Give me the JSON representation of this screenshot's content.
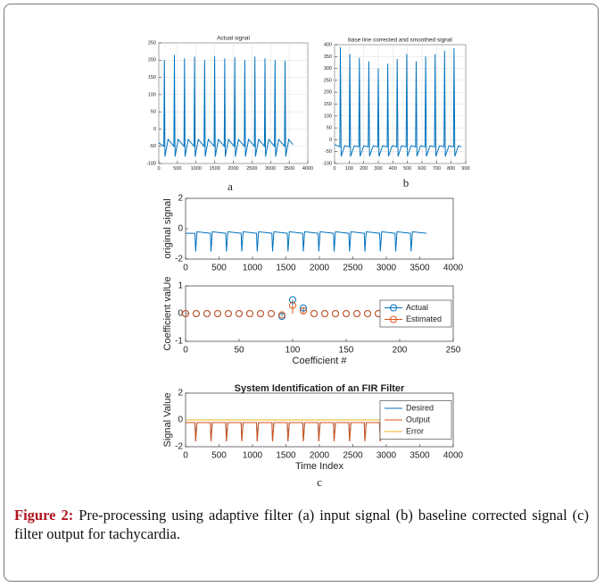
{
  "chart_data": [
    {
      "type": "line",
      "title": "Actual signal",
      "grid": true,
      "xlim": [
        0,
        4000
      ],
      "xticks": [
        0,
        500,
        1000,
        1500,
        2000,
        2500,
        3000,
        3500,
        4000
      ],
      "ylim": [
        -100,
        250
      ],
      "yticks": [
        -100,
        -50,
        0,
        50,
        100,
        150,
        200,
        250
      ],
      "x": [
        0,
        135,
        150,
        165,
        250,
        405,
        420,
        435,
        520,
        675,
        690,
        705,
        790,
        945,
        960,
        975,
        1060,
        1215,
        1230,
        1245,
        1330,
        1485,
        1500,
        1515,
        1600,
        1755,
        1770,
        1785,
        1870,
        2025,
        2040,
        2055,
        2140,
        2295,
        2310,
        2325,
        2410,
        2565,
        2580,
        2595,
        2680,
        2835,
        2850,
        2865,
        2950,
        3105,
        3120,
        3135,
        3220,
        3375,
        3390,
        3405,
        3490,
        3600
      ],
      "series": [
        {
          "color": "#0072bd",
          "values": [
            -40,
            -50,
            200,
            -80,
            -30,
            -50,
            215,
            -80,
            -30,
            -50,
            205,
            -80,
            -30,
            -50,
            210,
            -80,
            -30,
            -50,
            200,
            -80,
            -30,
            -50,
            212,
            -80,
            -30,
            -50,
            205,
            -80,
            -30,
            -50,
            208,
            -80,
            -30,
            -50,
            200,
            -80,
            -30,
            -50,
            210,
            -80,
            -30,
            -50,
            205,
            -80,
            -30,
            -50,
            200,
            -80,
            -30,
            -50,
            198,
            -80,
            -30,
            -45
          ]
        }
      ]
    },
    {
      "type": "line",
      "title": "base line corrected and smoothed signal",
      "grid": true,
      "xlim": [
        0,
        900
      ],
      "xticks": [
        0,
        100,
        200,
        300,
        400,
        500,
        600,
        700,
        800,
        900
      ],
      "ylim": [
        -100,
        400
      ],
      "yticks": [
        -100,
        -50,
        0,
        50,
        100,
        150,
        200,
        250,
        300,
        350,
        400
      ],
      "x": [
        0,
        36,
        40,
        45,
        70,
        101,
        105,
        110,
        135,
        166,
        170,
        175,
        200,
        231,
        235,
        240,
        265,
        296,
        300,
        305,
        330,
        361,
        365,
        370,
        395,
        426,
        430,
        435,
        460,
        491,
        495,
        500,
        525,
        556,
        560,
        565,
        590,
        621,
        625,
        630,
        655,
        686,
        690,
        695,
        720,
        751,
        755,
        760,
        785,
        816,
        820,
        825,
        850,
        870
      ],
      "series": [
        {
          "color": "#0072bd",
          "values": [
            -20,
            -30,
            390,
            -70,
            -25,
            -30,
            360,
            -70,
            -25,
            -30,
            345,
            -70,
            -25,
            -30,
            330,
            -70,
            -25,
            -30,
            300,
            -70,
            -25,
            -30,
            320,
            -70,
            -25,
            -30,
            340,
            -70,
            -25,
            -30,
            360,
            -70,
            -25,
            -30,
            330,
            -70,
            -25,
            -30,
            350,
            -70,
            -25,
            -30,
            360,
            -70,
            -25,
            -30,
            375,
            -70,
            -25,
            -30,
            385,
            -70,
            -25,
            -30
          ]
        }
      ]
    },
    {
      "type": "line",
      "ylabel": "original signal",
      "grid": false,
      "xlim": [
        0,
        4000
      ],
      "xticks": [
        0,
        500,
        1000,
        1500,
        2000,
        2500,
        3000,
        3500,
        4000
      ],
      "ylim": [
        -2,
        2
      ],
      "yticks": [
        -2,
        0,
        2
      ],
      "x": [
        0,
        140,
        150,
        170,
        370,
        380,
        400,
        600,
        610,
        630,
        830,
        840,
        860,
        1060,
        1070,
        1090,
        1290,
        1300,
        1320,
        1520,
        1530,
        1550,
        1750,
        1760,
        1780,
        1980,
        1990,
        2010,
        2210,
        2220,
        2240,
        2440,
        2450,
        2470,
        2670,
        2680,
        2700,
        2900,
        2910,
        2930,
        3130,
        3140,
        3160,
        3360,
        3370,
        3390,
        3600
      ],
      "series": [
        {
          "color": "#0072bd",
          "values": [
            -0.3,
            -0.3,
            -1.5,
            -0.2,
            -0.3,
            -1.5,
            -0.2,
            -0.3,
            -1.5,
            -0.2,
            -0.3,
            -1.5,
            -0.2,
            -0.3,
            -1.5,
            -0.2,
            -0.3,
            -1.5,
            -0.2,
            -0.3,
            -1.5,
            -0.2,
            -0.3,
            -1.5,
            -0.2,
            -0.3,
            -1.5,
            -0.2,
            -0.3,
            -1.5,
            -0.2,
            -0.3,
            -1.5,
            -0.2,
            -0.3,
            -1.5,
            -0.2,
            -0.3,
            -1.5,
            -0.2,
            -0.3,
            -1.5,
            -0.2,
            -0.3,
            -1.5,
            -0.2,
            -0.3
          ]
        }
      ]
    },
    {
      "type": "stem",
      "ylabel": "Coefficient valUe",
      "xlabel": "Coefficient #",
      "grid": false,
      "legend": "right",
      "xlim": [
        0,
        250
      ],
      "xticks": [
        0,
        50,
        100,
        150,
        200,
        250
      ],
      "ylim": [
        -1,
        1
      ],
      "yticks": [
        -1,
        0,
        1
      ],
      "x": [
        0,
        10,
        20,
        30,
        40,
        50,
        60,
        70,
        80,
        90,
        100,
        110,
        120,
        130,
        140,
        150,
        160,
        170,
        180,
        190,
        200,
        210,
        220
      ],
      "series": [
        {
          "name": "Actual",
          "color": "#0072bd",
          "values": [
            0,
            0,
            0,
            0,
            0,
            0,
            0,
            0,
            0,
            -0.1,
            0.5,
            0.2,
            0,
            0,
            0,
            0,
            0,
            0,
            0,
            0,
            0,
            0,
            0
          ]
        },
        {
          "name": "Estimated",
          "color": "#d95319",
          "values": [
            0,
            0,
            0,
            0,
            0,
            0,
            0,
            0,
            0,
            -0.05,
            0.3,
            0.1,
            0,
            0,
            0,
            0,
            0,
            0,
            0,
            0,
            0,
            0,
            0
          ]
        }
      ]
    },
    {
      "type": "line",
      "title": "System Identification of an FIR Filter",
      "ylabel": "Signal Value",
      "xlabel": "Time Index",
      "grid": false,
      "legend": "right",
      "xlim": [
        0,
        4000
      ],
      "xticks": [
        0,
        500,
        1000,
        1500,
        2000,
        2500,
        3000,
        3500,
        4000
      ],
      "ylim": [
        -2,
        2
      ],
      "yticks": [
        -2,
        0,
        2
      ],
      "x": [
        0,
        140,
        150,
        170,
        370,
        380,
        400,
        600,
        610,
        630,
        830,
        840,
        860,
        1060,
        1070,
        1090,
        1290,
        1300,
        1320,
        1520,
        1530,
        1550,
        1750,
        1760,
        1780,
        1980,
        1990,
        2010,
        2210,
        2220,
        2240,
        2440,
        2450,
        2470,
        2670,
        2680,
        2700,
        2900,
        2910,
        2930,
        3600
      ],
      "series": [
        {
          "name": "Desired",
          "color": "#0072bd",
          "values": [
            -0.2,
            -0.2,
            -1.6,
            -0.2,
            -0.2,
            -1.6,
            -0.2,
            -0.2,
            -1.6,
            -0.2,
            -0.2,
            -1.6,
            -0.2,
            -0.2,
            -1.6,
            -0.2,
            -0.2,
            -1.6,
            -0.2,
            -0.2,
            -1.6,
            -0.2,
            -0.2,
            -1.6,
            -0.2,
            -0.2,
            -1.6,
            -0.2,
            -0.2,
            -1.6,
            -0.2,
            -0.2,
            -1.6,
            -0.2,
            -0.2,
            -1.6,
            -0.2,
            -0.2,
            -1.6,
            -0.2,
            -0.1
          ]
        },
        {
          "name": "Output",
          "color": "#d95319",
          "values": [
            -0.2,
            -0.2,
            -1.6,
            -0.2,
            -0.2,
            -1.6,
            -0.2,
            -0.2,
            -1.6,
            -0.2,
            -0.2,
            -1.6,
            -0.2,
            -0.2,
            -1.6,
            -0.2,
            -0.2,
            -1.6,
            -0.2,
            -0.2,
            -1.6,
            -0.2,
            -0.2,
            -1.6,
            -0.2,
            -0.2,
            -1.6,
            -0.2,
            -0.2,
            -1.6,
            -0.2,
            -0.2,
            -1.6,
            -0.2,
            -0.2,
            -1.6,
            -0.2,
            -0.2,
            -1.6,
            -0.2,
            -0.1
          ]
        },
        {
          "name": "Error",
          "color": "#edb120",
          "values": [
            0,
            0,
            0,
            0,
            0,
            0,
            0,
            0,
            0,
            0,
            0,
            0,
            0,
            0,
            0,
            0,
            0,
            0,
            0,
            0,
            0,
            0,
            0,
            0,
            0,
            0,
            0,
            0,
            0,
            0,
            0,
            0,
            0,
            0,
            0,
            0,
            0,
            0,
            0,
            0,
            0
          ]
        }
      ]
    }
  ],
  "panel_labels": [
    "a",
    "b",
    "c"
  ],
  "caption": {
    "label": "Figure 2:",
    "text": "Pre-processing using adaptive filter (a) input signal (b) baseline corrected signal (c) filter output for tachycardia."
  }
}
